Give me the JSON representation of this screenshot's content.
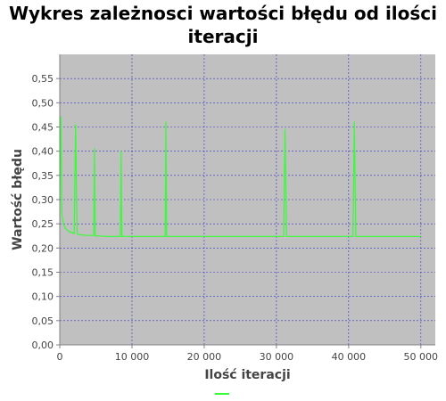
{
  "chart_data": {
    "type": "line",
    "title": "Wykres zależnosci wartości błędu od ilości iteracji",
    "xlabel": "Ilość iteracji",
    "ylabel": "Wartość błędu",
    "xlim": [
      0,
      52000
    ],
    "ylim": [
      0,
      0.6
    ],
    "x_ticks": [
      {
        "value": 0,
        "label": "0"
      },
      {
        "value": 10000,
        "label": "10 000"
      },
      {
        "value": 20000,
        "label": "20 000"
      },
      {
        "value": 30000,
        "label": "30 000"
      },
      {
        "value": 40000,
        "label": "40 000"
      },
      {
        "value": 50000,
        "label": "50 000"
      }
    ],
    "y_ticks": [
      {
        "value": 0.0,
        "label": "0,00"
      },
      {
        "value": 0.05,
        "label": "0,05"
      },
      {
        "value": 0.1,
        "label": "0,10"
      },
      {
        "value": 0.15,
        "label": "0,15"
      },
      {
        "value": 0.2,
        "label": "0,20"
      },
      {
        "value": 0.25,
        "label": "0,25"
      },
      {
        "value": 0.3,
        "label": "0,30"
      },
      {
        "value": 0.35,
        "label": "0,35"
      },
      {
        "value": 0.4,
        "label": "0,40"
      },
      {
        "value": 0.45,
        "label": "0,45"
      },
      {
        "value": 0.5,
        "label": "0,50"
      },
      {
        "value": 0.55,
        "label": "0,55"
      }
    ],
    "grid": true,
    "legend": "bottom-center",
    "colors": {
      "plot_background": "#c0c0c0",
      "grid": "#3333cc",
      "series": "#33ff33"
    },
    "series": [
      {
        "x": [
          0,
          150,
          300,
          500,
          800,
          1200,
          1600,
          2000,
          2200,
          2400,
          2600,
          3000,
          4000,
          4700,
          4800,
          4900,
          5500,
          6500,
          7500,
          8400,
          8500,
          8600,
          9000,
          10000,
          12000,
          14000,
          14600,
          14700,
          14800,
          15000,
          20000,
          25000,
          30000,
          31000,
          31200,
          31400,
          32000,
          35000,
          40000,
          40600,
          40800,
          41000,
          42000,
          45000,
          48000,
          50000
        ],
        "y": [
          0.3,
          0.47,
          0.27,
          0.25,
          0.24,
          0.235,
          0.232,
          0.23,
          0.455,
          0.23,
          0.228,
          0.227,
          0.226,
          0.226,
          0.405,
          0.225,
          0.225,
          0.224,
          0.224,
          0.224,
          0.4,
          0.224,
          0.224,
          0.224,
          0.224,
          0.224,
          0.224,
          0.46,
          0.224,
          0.224,
          0.224,
          0.224,
          0.224,
          0.224,
          0.445,
          0.224,
          0.224,
          0.224,
          0.224,
          0.224,
          0.46,
          0.224,
          0.224,
          0.224,
          0.224,
          0.224
        ]
      }
    ]
  }
}
